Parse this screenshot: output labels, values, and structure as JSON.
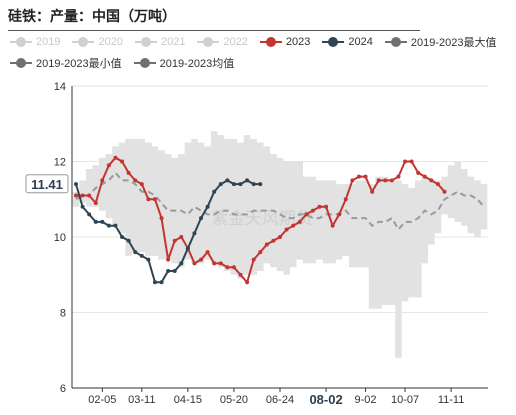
{
  "title": "硅铁：产量：中国（万吨）",
  "watermark": "紫金天风期货",
  "chart_data": {
    "type": "line",
    "x_ticks": [
      "02-05",
      "03-11",
      "04-15",
      "05-20",
      "06-24",
      "08-02",
      "9-02",
      "10-07",
      "11-11"
    ],
    "highlighted_x_tick": "08-02",
    "ylim": [
      6,
      14
    ],
    "y_ticks": [
      6,
      8,
      10,
      12,
      14
    ],
    "crosshair_value_label": "11.41",
    "legend": [
      {
        "name": "2019",
        "visible": false,
        "color": "#d0d0d0"
      },
      {
        "name": "2020",
        "visible": false,
        "color": "#d0d0d0"
      },
      {
        "name": "2021",
        "visible": false,
        "color": "#d0d0d0"
      },
      {
        "name": "2022",
        "visible": false,
        "color": "#d0d0d0"
      },
      {
        "name": "2023",
        "visible": true,
        "color": "#c23531"
      },
      {
        "name": "2024",
        "visible": true,
        "color": "#2f4554"
      },
      {
        "name": "2019-2023最大值",
        "visible": true,
        "color": "#6e7074"
      },
      {
        "name": "2019-2023最小值",
        "visible": true,
        "color": "#6e7074"
      },
      {
        "name": "2019-2023均值",
        "visible": true,
        "color": "#6e7074"
      }
    ],
    "series": [
      {
        "name": "2019-2023最大值",
        "values": [
          11.2,
          11.5,
          11.8,
          11.9,
          12.1,
          12.2,
          12.4,
          12.5,
          12.6,
          12.6,
          12.6,
          12.5,
          12.4,
          12.3,
          12.2,
          12.1,
          12.2,
          12.5,
          12.6,
          12.5,
          12.4,
          12.8,
          12.7,
          12.6,
          12.6,
          12.5,
          12.7,
          12.6,
          12.5,
          12.4,
          12.2,
          12.1,
          12.0,
          12.0,
          12.0,
          11.6,
          11.6,
          11.5,
          11.5,
          11.5,
          11.4,
          11.4,
          11.4,
          11.5,
          11.5,
          11.4,
          11.6,
          11.6,
          11.5,
          11.5,
          11.4,
          11.3,
          11.5,
          11.6,
          11.5,
          11.5,
          11.6,
          11.9,
          12.0,
          11.8,
          11.6,
          11.5,
          11.4
        ]
      },
      {
        "name": "2019-2023最小值",
        "values": [
          10.8,
          10.9,
          10.8,
          10.8,
          10.7,
          10.5,
          10.3,
          10.1,
          9.5,
          9.6,
          9.6,
          9.5,
          9.5,
          9.4,
          9.4,
          9.3,
          9.2,
          9.4,
          9.3,
          9.3,
          9.4,
          9.3,
          9.2,
          9.1,
          9.0,
          8.9,
          9.0,
          9.0,
          9.1,
          9.3,
          9.2,
          9.1,
          9.0,
          9.2,
          9.4,
          9.3,
          9.3,
          9.4,
          9.3,
          9.3,
          9.4,
          9.5,
          9.2,
          9.2,
          9.2,
          8.1,
          8.1,
          8.2,
          8.2,
          6.8,
          8.3,
          8.4,
          8.4,
          9.3,
          9.8,
          10.1,
          10.6,
          10.5,
          10.4,
          10.3,
          10.1,
          10.0,
          10.2
        ]
      },
      {
        "name": "2019-2023均值",
        "values": [
          11.0,
          11.1,
          11.1,
          11.3,
          11.4,
          11.5,
          11.7,
          11.5,
          11.5,
          11.4,
          11.2,
          11.2,
          11.1,
          10.9,
          10.7,
          10.7,
          10.7,
          10.6,
          10.8,
          10.7,
          10.6,
          10.6,
          10.7,
          10.7,
          10.6,
          10.6,
          10.6,
          10.7,
          10.7,
          10.7,
          10.7,
          10.6,
          10.5,
          10.5,
          10.6,
          10.6,
          10.5,
          10.5,
          10.6,
          10.6,
          10.6,
          10.7,
          10.5,
          10.5,
          10.5,
          10.3,
          10.4,
          10.4,
          10.5,
          10.2,
          10.4,
          10.4,
          10.5,
          10.7,
          10.6,
          10.7,
          11.0,
          11.1,
          11.2,
          11.1,
          11.1,
          11.0,
          10.8
        ]
      },
      {
        "name": "2023",
        "values": [
          11.1,
          11.1,
          11.1,
          10.9,
          11.5,
          11.9,
          12.1,
          12.0,
          11.7,
          11.5,
          11.4,
          11.0,
          11.0,
          10.5,
          9.4,
          9.9,
          10.0,
          9.7,
          9.3,
          9.4,
          9.6,
          9.3,
          9.3,
          9.2,
          9.2,
          9.0,
          8.8,
          9.4,
          9.6,
          9.8,
          9.9,
          10.0,
          10.2,
          10.3,
          10.4,
          10.6,
          10.7,
          10.8,
          10.8,
          10.3,
          10.6,
          11.0,
          11.5,
          11.6,
          11.6,
          11.2,
          11.5,
          11.5,
          11.5,
          11.6,
          12.0,
          12.0,
          11.7,
          11.6,
          11.5,
          11.4,
          11.2
        ]
      },
      {
        "name": "2024",
        "values": [
          11.4,
          10.8,
          10.6,
          10.4,
          10.4,
          10.3,
          10.3,
          10.0,
          9.9,
          9.6,
          9.5,
          9.4,
          8.8,
          8.8,
          9.1,
          9.1,
          9.3,
          9.7,
          10.1,
          10.5,
          10.8,
          11.2,
          11.4,
          11.5,
          11.4,
          11.4,
          11.5,
          11.4,
          11.4
        ]
      }
    ]
  }
}
